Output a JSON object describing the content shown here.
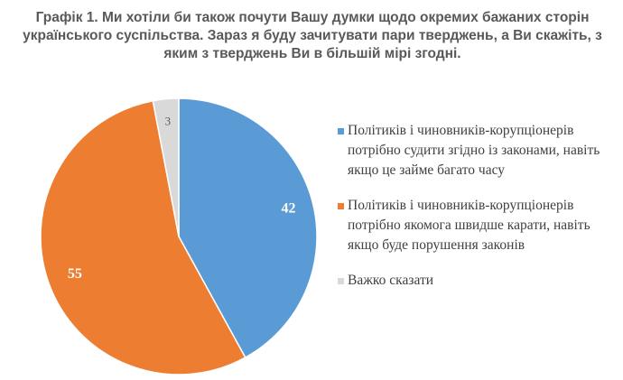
{
  "chart_data": {
    "type": "pie",
    "title": "Графік 1. Ми хотіли би також почути Вашу думки щодо окремих бажаних сторін українського суспільства. Зараз я буду зачитувати пари тверджень, а Ви скажіть, з яким з тверджень Ви в більшій мірі згодні.",
    "slices": [
      {
        "label": "Політиків і чиновників-корупціонерів потрібно судити згідно із законами, навіть якщо це займе багато часу",
        "value": 42,
        "value_label": "42",
        "color": "#5B9BD5"
      },
      {
        "label": "Політиків і чиновників-корупціонерів потрібно якомога швидше карати, навіть якщо буде порушення законів",
        "value": 55,
        "value_label": "55",
        "color": "#ED7D31"
      },
      {
        "label": "Важко сказати",
        "value": 3,
        "value_label": "3",
        "color": "#D9D9D9"
      }
    ],
    "legend_position": "right"
  }
}
